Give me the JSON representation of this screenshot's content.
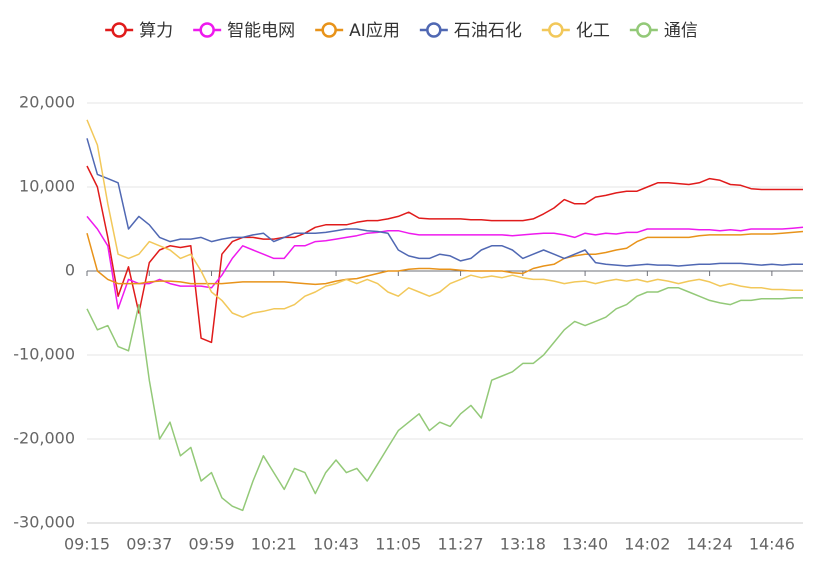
{
  "chart_data": {
    "type": "line",
    "categories": [
      "09:15",
      null,
      null,
      null,
      null,
      null,
      "09:37",
      null,
      null,
      null,
      null,
      null,
      "09:59",
      null,
      null,
      null,
      null,
      null,
      "10:21",
      null,
      null,
      null,
      null,
      null,
      "10:43",
      null,
      null,
      null,
      null,
      null,
      "11:05",
      null,
      null,
      null,
      null,
      null,
      "11:27",
      null,
      null,
      null,
      null,
      null,
      "13:18",
      null,
      null,
      null,
      null,
      null,
      "13:40",
      null,
      null,
      null,
      null,
      null,
      "14:02",
      null,
      null,
      null,
      null,
      null,
      "14:24",
      null,
      null,
      null,
      null,
      null,
      "14:46",
      null,
      null,
      null
    ],
    "ylim": [
      -30000,
      20000
    ],
    "yticks": [
      {
        "value": 20000,
        "label": "20,000"
      },
      {
        "value": 10000,
        "label": "10,000"
      },
      0,
      {
        "value": -10000,
        "label": "-10,000"
      },
      {
        "value": -20000,
        "label": "-20,000"
      },
      {
        "value": -30000,
        "label": "-30,000"
      }
    ],
    "grid": true,
    "legend": "top",
    "series": [
      {
        "name": "算力",
        "color": "#e01b1b",
        "values": [
          12500,
          10000,
          4000,
          -3000,
          500,
          -5000,
          1000,
          2500,
          3000,
          2800,
          3000,
          -8000,
          -8500,
          2000,
          3500,
          4000,
          4000,
          3800,
          3800,
          4000,
          4000,
          4500,
          5200,
          5500,
          5500,
          5500,
          5800,
          6000,
          6000,
          6200,
          6500,
          7000,
          6300,
          6200,
          6200,
          6200,
          6200,
          6100,
          6100,
          6000,
          6000,
          6000,
          6000,
          6200,
          6800,
          7500,
          8500,
          8000,
          8000,
          8800,
          9000,
          9300,
          9500,
          9500,
          10000,
          10500,
          10500,
          10400,
          10300,
          10500,
          11000,
          10800,
          10300,
          10200,
          9800,
          9700,
          9700,
          9700,
          9700,
          9700
        ]
      },
      {
        "name": "智能电网",
        "color": "#ee1aee",
        "values": [
          6500,
          5000,
          3000,
          -4500,
          -1000,
          -1500,
          -1500,
          -1000,
          -1500,
          -1800,
          -1800,
          -1800,
          -2000,
          -500,
          1500,
          3000,
          2500,
          2000,
          1500,
          1500,
          3000,
          3000,
          3500,
          3600,
          3800,
          4000,
          4200,
          4500,
          4600,
          4800,
          4800,
          4500,
          4300,
          4300,
          4300,
          4300,
          4300,
          4300,
          4300,
          4300,
          4300,
          4200,
          4300,
          4400,
          4500,
          4500,
          4300,
          4000,
          4500,
          4300,
          4500,
          4400,
          4600,
          4600,
          5000,
          5000,
          5000,
          5000,
          5000,
          4900,
          4900,
          4800,
          4900,
          4800,
          5000,
          5000,
          5000,
          5000,
          5100,
          5200
        ]
      },
      {
        "name": "AI应用",
        "color": "#e8931a",
        "values": [
          4500,
          0,
          -1000,
          -1500,
          -1500,
          -1500,
          -1300,
          -1200,
          -1200,
          -1300,
          -1500,
          -1500,
          -1500,
          -1500,
          -1400,
          -1300,
          -1300,
          -1300,
          -1300,
          -1300,
          -1400,
          -1500,
          -1600,
          -1500,
          -1200,
          -1000,
          -900,
          -600,
          -300,
          0,
          0,
          200,
          300,
          300,
          200,
          200,
          100,
          0,
          0,
          0,
          0,
          -200,
          -300,
          300,
          600,
          800,
          1500,
          1800,
          2000,
          2000,
          2200,
          2500,
          2700,
          3500,
          4000,
          4000,
          4000,
          4000,
          4000,
          4200,
          4300,
          4300,
          4300,
          4300,
          4400,
          4400,
          4400,
          4500,
          4600,
          4700
        ]
      },
      {
        "name": "石油石化",
        "color": "#5068b3",
        "values": [
          15800,
          11500,
          11000,
          10500,
          5000,
          6500,
          5500,
          4000,
          3500,
          3800,
          3800,
          4000,
          3500,
          3800,
          4000,
          4000,
          4300,
          4500,
          3500,
          4000,
          4500,
          4500,
          4500,
          4600,
          4800,
          5000,
          5000,
          4800,
          4700,
          4500,
          2500,
          1800,
          1500,
          1500,
          2000,
          1800,
          1200,
          1500,
          2500,
          3000,
          3000,
          2500,
          1500,
          2000,
          2500,
          2000,
          1500,
          2000,
          2500,
          1000,
          800,
          700,
          600,
          700,
          800,
          700,
          700,
          600,
          700,
          800,
          800,
          900,
          900,
          900,
          800,
          700,
          800,
          700,
          800,
          800
        ]
      },
      {
        "name": "化工",
        "color": "#f2c85a",
        "values": [
          18000,
          15000,
          8000,
          2000,
          1500,
          2000,
          3500,
          3000,
          2500,
          1500,
          2000,
          0,
          -2500,
          -3500,
          -5000,
          -5500,
          -5000,
          -4800,
          -4500,
          -4500,
          -4000,
          -3000,
          -2500,
          -1800,
          -1500,
          -1000,
          -1500,
          -1000,
          -1500,
          -2500,
          -3000,
          -2000,
          -2500,
          -3000,
          -2500,
          -1500,
          -1000,
          -500,
          -800,
          -600,
          -800,
          -500,
          -800,
          -1000,
          -1000,
          -1200,
          -1500,
          -1300,
          -1200,
          -1500,
          -1200,
          -1000,
          -1200,
          -1000,
          -1300,
          -1000,
          -1200,
          -1500,
          -1200,
          -1000,
          -1300,
          -1800,
          -1500,
          -1800,
          -2000,
          -2000,
          -2200,
          -2200,
          -2300,
          -2300
        ]
      },
      {
        "name": "通信",
        "color": "#93c978",
        "values": [
          -4500,
          -7000,
          -6500,
          -9000,
          -9500,
          -4000,
          -13000,
          -20000,
          -18000,
          -22000,
          -21000,
          -25000,
          -24000,
          -27000,
          -28000,
          -28500,
          -25000,
          -22000,
          -24000,
          -26000,
          -23500,
          -24000,
          -26500,
          -24000,
          -22500,
          -24000,
          -23500,
          -25000,
          -23000,
          -21000,
          -19000,
          -18000,
          -17000,
          -19000,
          -18000,
          -18500,
          -17000,
          -16000,
          -17500,
          -13000,
          -12500,
          -12000,
          -11000,
          -11000,
          -10000,
          -8500,
          -7000,
          -6000,
          -6500,
          -6000,
          -5500,
          -4500,
          -4000,
          -3000,
          -2500,
          -2500,
          -2000,
          -2000,
          -2500,
          -3000,
          -3500,
          -3800,
          -4000,
          -3500,
          -3500,
          -3300,
          -3300,
          -3300,
          -3200,
          -3200
        ]
      }
    ]
  }
}
